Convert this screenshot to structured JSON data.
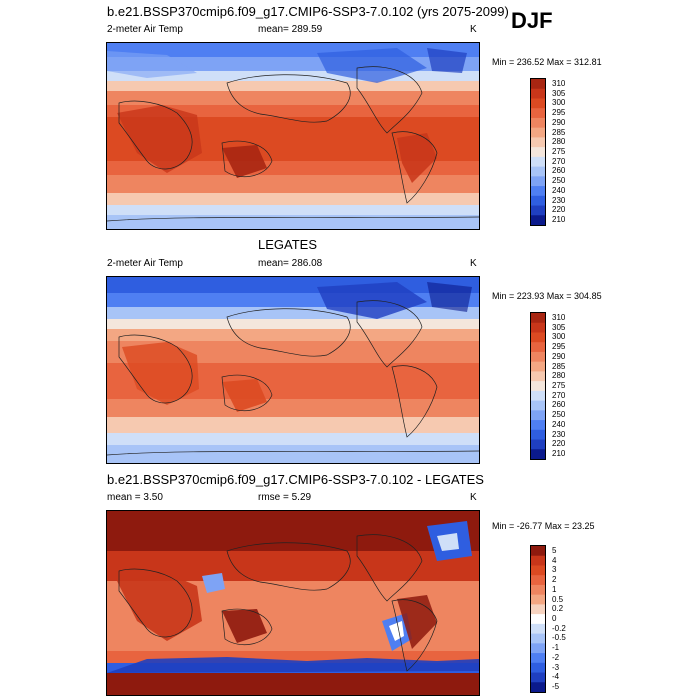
{
  "season": "DJF",
  "colors": {
    "abs_scale": [
      "#0b1a8c",
      "#1f3fc0",
      "#2f5ee0",
      "#4f7ff2",
      "#7ea3f5",
      "#a8c4f7",
      "#cfdff8",
      "#f4e6dc",
      "#f6c9b0",
      "#f3a783",
      "#ee8560",
      "#e8643f",
      "#dc4a22",
      "#c8361a",
      "#a82612"
    ],
    "diff_scale": [
      "#0b1a8c",
      "#1f3fc0",
      "#2f5ee0",
      "#4f7ff2",
      "#7ea3f5",
      "#a8c4f7",
      "#cfdff8",
      "#ffffff",
      "#f6d3c0",
      "#f3a783",
      "#ee8560",
      "#e8643f",
      "#dc4a22",
      "#c8361a",
      "#8e1a0e"
    ]
  },
  "panels": [
    {
      "id": "model",
      "title": "b.e21.BSSP370cmip6.f09_g17.CMIP6-SSP3-7.0.102 (yrs 2075-2099)",
      "left_label": "2-meter Air Temp",
      "center_label": "mean= 289.59",
      "right_label": "K",
      "minmax": "Min = 236.52 Max = 312.81",
      "colorbar": "abs"
    },
    {
      "id": "obs",
      "title": "LEGATES",
      "left_label": "2-meter Air Temp",
      "center_label": "mean= 286.08",
      "right_label": "K",
      "minmax": "Min = 223.93 Max = 304.85",
      "colorbar": "abs"
    },
    {
      "id": "diff",
      "title": "b.e21.BSSP370cmip6.f09_g17.CMIP6-SSP3-7.0.102 - LEGATES",
      "left_label": "mean =   3.50",
      "center_label": "rmse =   5.29",
      "right_label": "K",
      "minmax": "Min = -26.77 Max =  23.25",
      "colorbar": "diff"
    }
  ],
  "chart_data": [
    {
      "type": "heatmap",
      "title": "b.e21.BSSP370cmip6.f09_g17.CMIP6-SSP3-7.0.102 (yrs 2075-2099)",
      "variable": "2-meter Air Temp",
      "units": "K",
      "mean": 289.59,
      "min": 236.52,
      "max": 312.81,
      "colorbar_levels": [
        310,
        305,
        300,
        295,
        290,
        285,
        280,
        275,
        270,
        260,
        250,
        240,
        230,
        220,
        210
      ]
    },
    {
      "type": "heatmap",
      "title": "LEGATES",
      "variable": "2-meter Air Temp",
      "units": "K",
      "mean": 286.08,
      "min": 223.93,
      "max": 304.85,
      "colorbar_levels": [
        310,
        305,
        300,
        295,
        290,
        285,
        280,
        275,
        270,
        260,
        250,
        240,
        230,
        220,
        210
      ]
    },
    {
      "type": "heatmap",
      "title": "b.e21.BSSP370cmip6.f09_g17.CMIP6-SSP3-7.0.102 - LEGATES",
      "units": "K",
      "mean": 3.5,
      "rmse": 5.29,
      "min": -26.77,
      "max": 23.25,
      "colorbar_levels": [
        "5",
        "4",
        "3",
        "2",
        "1",
        "0.5",
        "0.2",
        "0",
        "-0.2",
        "-0.5",
        "-1",
        "-2",
        "-3",
        "-4",
        "-5"
      ]
    }
  ]
}
